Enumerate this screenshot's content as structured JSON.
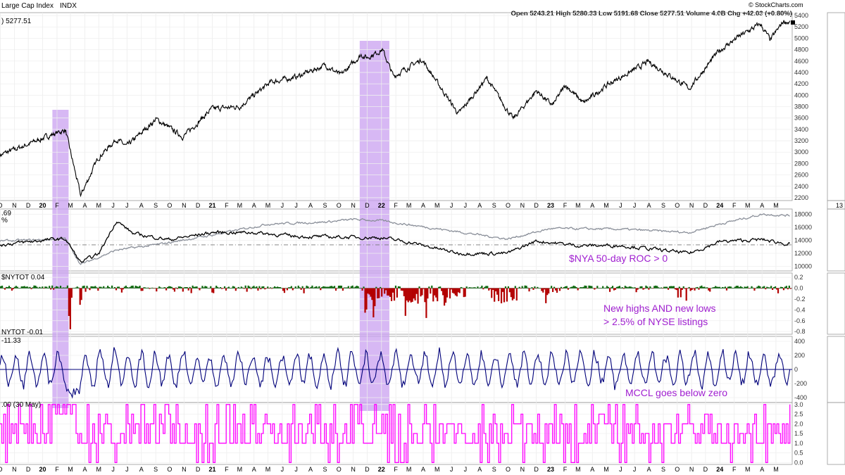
{
  "header": {
    "title": "Large Cap Index",
    "exchange": "INDX",
    "ohlc": "Open 5243.21  High 5280.33  Low 5191.68  Close 5277.51  Volume 4.0B  Chg +42.03 (+0.80%)",
    "watermark": "© StockCharts.com"
  },
  "chart_data": [
    {
      "type": "line",
      "panel": "price",
      "label": ") 5277.51",
      "yticks": [
        "5400",
        "5200",
        "5000",
        "4800",
        "4600",
        "4400",
        "4200",
        "4000",
        "3800",
        "3600",
        "3400",
        "3200",
        "3000",
        "2800",
        "2600",
        "2400",
        "2200"
      ],
      "ylim": [
        2150,
        5450
      ],
      "x": [
        "2019-10-01",
        "2019-12-01",
        "2020-01-15",
        "2020-02-19",
        "2020-03-23",
        "2020-04-30",
        "2020-06-08",
        "2020-06-30",
        "2020-09-02",
        "2020-10-30",
        "2020-12-31",
        "2021-03-01",
        "2021-05-07",
        "2021-07-01",
        "2021-09-02",
        "2021-10-05",
        "2021-11-18",
        "2021-12-01",
        "2022-01-03",
        "2022-01-27",
        "2022-03-29",
        "2022-06-16",
        "2022-08-16",
        "2022-10-12",
        "2022-12-01",
        "2023-01-05",
        "2023-02-02",
        "2023-03-13",
        "2023-05-01",
        "2023-07-31",
        "2023-10-27",
        "2023-12-29",
        "2024-02-09",
        "2024-03-28",
        "2024-04-19",
        "2024-05-17",
        "2024-05-31"
      ],
      "values": [
        2950,
        3140,
        3290,
        3390,
        2240,
        2900,
        3230,
        3100,
        3580,
        3270,
        3760,
        3800,
        4230,
        4320,
        4530,
        4350,
        4710,
        4660,
        4800,
        4330,
        4630,
        3670,
        4300,
        3580,
        4080,
        3820,
        4180,
        3860,
        4170,
        4590,
        4120,
        4770,
        5020,
        5250,
        4970,
        5300,
        5277
      ]
    },
    {
      "type": "line",
      "panel": "nya-roc",
      "label": ".69",
      "label2": "%",
      "yticks": [
        "18000",
        "16000",
        "14000",
        "12000",
        "10000"
      ],
      "ylim": [
        9300,
        18800
      ],
      "series": [
        {
          "x": [
            "2019-10-01",
            "2020-01-15",
            "2020-02-19",
            "2020-03-23",
            "2020-05-01",
            "2020-06-08",
            "2020-07-15",
            "2020-10-01",
            "2021-01-01",
            "2021-04-01",
            "2021-07-01",
            "2021-10-01",
            "2022-01-01",
            "2022-03-01",
            "2022-06-16",
            "2022-09-30",
            "2022-12-01",
            "2023-03-01",
            "2023-06-01",
            "2023-10-27",
            "2024-01-01",
            "2024-04-01",
            "2024-05-31"
          ],
          "values": [
            13300,
            14100,
            14200,
            10600,
            11900,
            17000,
            15000,
            14100,
            15200,
            15200,
            14600,
            14500,
            14400,
            13700,
            12000,
            12000,
            13900,
            13200,
            13200,
            12000,
            13800,
            14100,
            13400
          ]
        },
        {
          "x": [
            "2019-10-01",
            "2020-01-15",
            "2020-02-19",
            "2020-03-23",
            "2020-06-08",
            "2020-09-01",
            "2021-01-01",
            "2021-05-01",
            "2021-09-01",
            "2021-11-01",
            "2022-01-01",
            "2022-06-16",
            "2022-09-30",
            "2023-01-01",
            "2023-06-01",
            "2023-10-27",
            "2024-01-01",
            "2024-04-01",
            "2024-05-31"
          ],
          "values": [
            13900,
            14100,
            14300,
            10300,
            12500,
            13300,
            14800,
            16500,
            16800,
            17200,
            17000,
            15300,
            14200,
            15800,
            15700,
            15200,
            16500,
            18000,
            17800
          ]
        }
      ]
    },
    {
      "type": "bar",
      "panel": "nytot",
      "label": "$NYTOT 0.04",
      "yticks": [
        "0.2",
        "0.0",
        "-0.2",
        "-0.4",
        "-0.6",
        "-0.8"
      ],
      "ylim": [
        -0.85,
        0.28
      ]
    },
    {
      "type": "line",
      "panel": "mccl",
      "label": "NYTOT -0.01",
      "label2": "-11.33",
      "yticks": [
        "400",
        "200",
        "0",
        "-200",
        "-400"
      ],
      "ylim": [
        -470,
        470
      ]
    },
    {
      "type": "line",
      "panel": "signal",
      "label": ".00 (30 May)",
      "yticks": [
        "3.0",
        "2.5",
        "2.0",
        "1.5",
        "1.0",
        "0.5",
        "0.0"
      ],
      "ylim": [
        -0.1,
        3.1
      ]
    }
  ],
  "annotations": {
    "roc": "$NYA 50-day ROC > 0",
    "hl1": "New highs AND new lows",
    "hl2": "> 2.5% of NYSE listings",
    "mccl": "MCCL goes below zero"
  },
  "x_axis": {
    "months": [
      "O",
      "N",
      "D",
      "20",
      "F",
      "M",
      "A",
      "M",
      "J",
      "J",
      "A",
      "S",
      "O",
      "N",
      "D",
      "21",
      "F",
      "M",
      "A",
      "M",
      "J",
      "J",
      "A",
      "S",
      "O",
      "N",
      "D",
      "22",
      "F",
      "M",
      "A",
      "M",
      "J",
      "J",
      "A",
      "S",
      "O",
      "N",
      "D",
      "23",
      "F",
      "M",
      "A",
      "M",
      "J",
      "J",
      "A",
      "S",
      "O",
      "N",
      "D",
      "24",
      "F",
      "M",
      "A",
      "M"
    ],
    "start": "2019-10-01",
    "side_label": "13"
  },
  "highlights": [
    {
      "from": "2020-01-22",
      "to": "2020-02-26"
    },
    {
      "from": "2021-11-15",
      "to": "2022-01-18"
    }
  ],
  "colors": {
    "price": "#000000",
    "roc_black": "#000000",
    "roc_gray": "#8a8f99",
    "pos_bar": "#0f6b0f",
    "neg_bar": "#b30000",
    "mccl": "#00007a",
    "signal": "#ff00ff",
    "highlight": "#c9a0f0",
    "annotation": "#a020d0"
  }
}
